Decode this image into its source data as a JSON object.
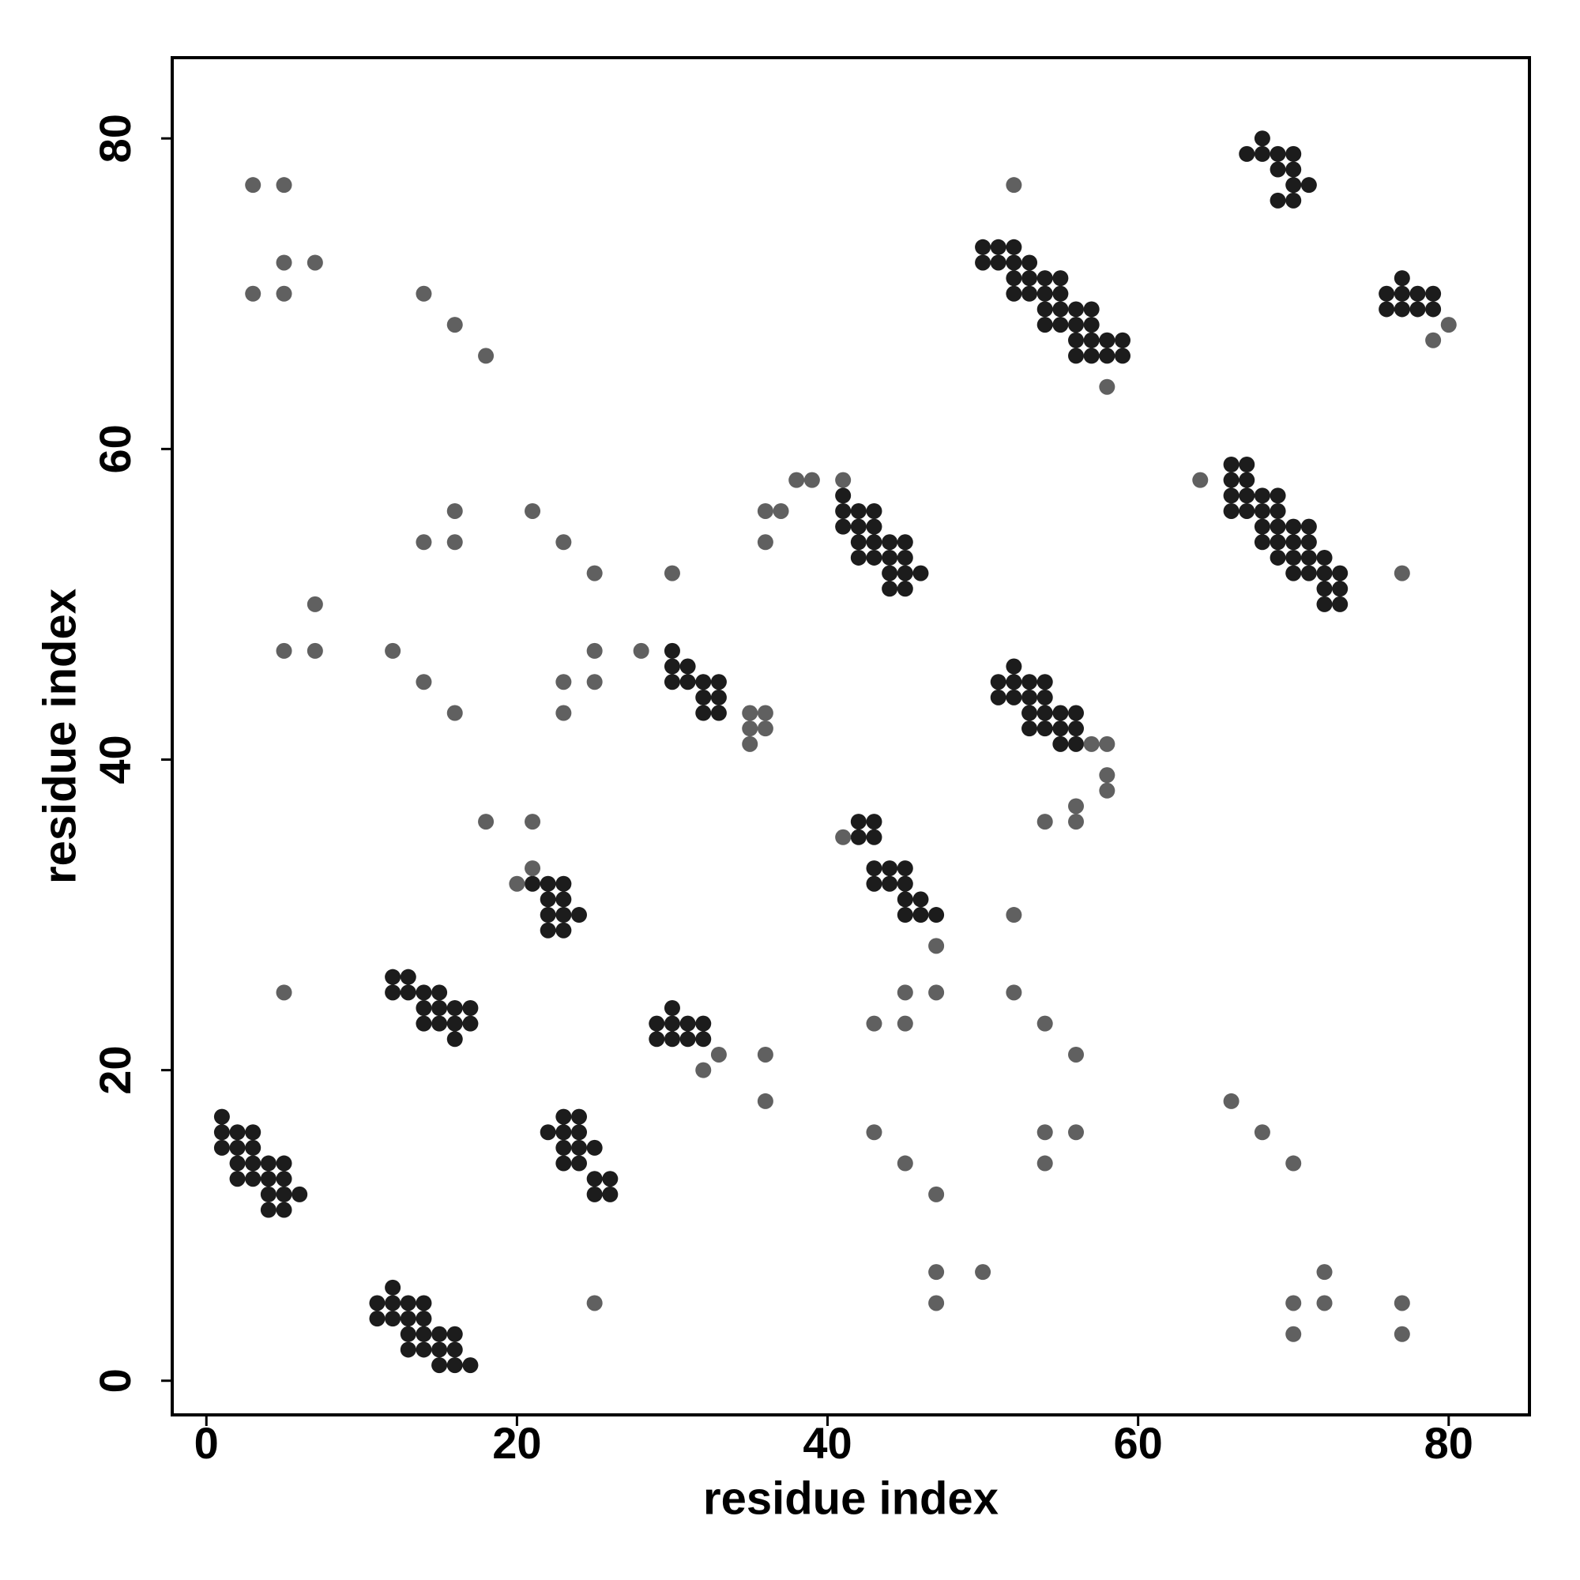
{
  "chart_data": {
    "type": "scatter",
    "xlabel": "residue index",
    "ylabel": "residue index",
    "xlim": [
      -2.2,
      85.2
    ],
    "ylim": [
      -2.2,
      85.2
    ],
    "xticks": [
      0,
      20,
      40,
      60,
      80
    ],
    "yticks": [
      0,
      20,
      40,
      60,
      80
    ],
    "grid": false,
    "series": [
      {
        "color": "#1c1c1c",
        "x": [
          15,
          16,
          17,
          13,
          14,
          15,
          16,
          13,
          14,
          15,
          16,
          11,
          12,
          13,
          14,
          11,
          12,
          13,
          14,
          12,
          4,
          5,
          4,
          5,
          6,
          25,
          26,
          2,
          3,
          4,
          5,
          25,
          26,
          2,
          3,
          4,
          5,
          23,
          24,
          1,
          2,
          3,
          23,
          24,
          25,
          1,
          2,
          3,
          22,
          23,
          24,
          1,
          23,
          24,
          16,
          29,
          30,
          31,
          32,
          14,
          15,
          16,
          17,
          29,
          30,
          31,
          32,
          14,
          15,
          16,
          17,
          30,
          12,
          13,
          14,
          15,
          12,
          13,
          22,
          23,
          22,
          23,
          24,
          45,
          46,
          47,
          22,
          23,
          45,
          46,
          21,
          22,
          23,
          43,
          44,
          45,
          43,
          44,
          45,
          42,
          43,
          42,
          43,
          55,
          56,
          53,
          54,
          55,
          56,
          53,
          54,
          55,
          56,
          32,
          33,
          32,
          33,
          51,
          52,
          53,
          54,
          30,
          31,
          32,
          33,
          51,
          52,
          53,
          54,
          30,
          31,
          52,
          30,
          72,
          73,
          44,
          45,
          72,
          73,
          44,
          45,
          46,
          70,
          71,
          72,
          73,
          42,
          43,
          44,
          45,
          69,
          70,
          71,
          72,
          42,
          43,
          44,
          45,
          68,
          69,
          70,
          71,
          41,
          42,
          43,
          68,
          69,
          70,
          71,
          41,
          42,
          43,
          66,
          67,
          68,
          69,
          41,
          66,
          67,
          68,
          69,
          66,
          67,
          66,
          67,
          56,
          57,
          58,
          59,
          56,
          57,
          58,
          59,
          54,
          55,
          56,
          57,
          54,
          55,
          56,
          57,
          76,
          77,
          78,
          79,
          52,
          53,
          54,
          55,
          76,
          77,
          78,
          79,
          52,
          53,
          54,
          55,
          77,
          50,
          51,
          52,
          53,
          50,
          51,
          52,
          69,
          70,
          70,
          71,
          69,
          70,
          67,
          68,
          69,
          70,
          68
        ],
        "y": [
          1,
          1,
          1,
          2,
          2,
          2,
          2,
          3,
          3,
          3,
          3,
          4,
          4,
          4,
          4,
          5,
          5,
          5,
          5,
          6,
          11,
          11,
          12,
          12,
          12,
          12,
          12,
          13,
          13,
          13,
          13,
          13,
          13,
          14,
          14,
          14,
          14,
          14,
          14,
          15,
          15,
          15,
          15,
          15,
          15,
          16,
          16,
          16,
          16,
          16,
          16,
          17,
          17,
          17,
          22,
          22,
          22,
          22,
          22,
          23,
          23,
          23,
          23,
          23,
          23,
          23,
          23,
          24,
          24,
          24,
          24,
          24,
          25,
          25,
          25,
          25,
          26,
          26,
          29,
          29,
          30,
          30,
          30,
          30,
          30,
          30,
          31,
          31,
          31,
          31,
          32,
          32,
          32,
          32,
          32,
          32,
          33,
          33,
          33,
          35,
          35,
          36,
          36,
          41,
          41,
          42,
          42,
          42,
          42,
          43,
          43,
          43,
          43,
          43,
          43,
          44,
          44,
          44,
          44,
          44,
          44,
          45,
          45,
          45,
          45,
          45,
          45,
          45,
          45,
          46,
          46,
          46,
          47,
          50,
          50,
          51,
          51,
          51,
          51,
          52,
          52,
          52,
          52,
          52,
          52,
          52,
          53,
          53,
          53,
          53,
          53,
          53,
          53,
          53,
          54,
          54,
          54,
          54,
          54,
          54,
          54,
          54,
          55,
          55,
          55,
          55,
          55,
          55,
          55,
          56,
          56,
          56,
          56,
          56,
          56,
          56,
          57,
          57,
          57,
          57,
          57,
          58,
          58,
          59,
          59,
          66,
          66,
          66,
          66,
          67,
          67,
          67,
          67,
          68,
          68,
          68,
          68,
          69,
          69,
          69,
          69,
          69,
          69,
          69,
          69,
          70,
          70,
          70,
          70,
          70,
          70,
          70,
          70,
          71,
          71,
          71,
          71,
          71,
          72,
          72,
          72,
          72,
          73,
          73,
          73,
          76,
          76,
          77,
          77,
          78,
          78,
          79,
          79,
          79,
          79,
          80
        ]
      },
      {
        "color": "#606060",
        "x": [
          70,
          77,
          25,
          47,
          70,
          72,
          77,
          47,
          50,
          72,
          47,
          45,
          54,
          70,
          43,
          54,
          56,
          68,
          36,
          66,
          32,
          33,
          36,
          56,
          43,
          45,
          54,
          5,
          45,
          47,
          52,
          47,
          52,
          20,
          21,
          41,
          18,
          21,
          54,
          56,
          56,
          58,
          58,
          35,
          57,
          58,
          35,
          36,
          16,
          23,
          35,
          36,
          14,
          23,
          25,
          5,
          7,
          12,
          25,
          28,
          7,
          25,
          30,
          77,
          14,
          16,
          23,
          36,
          16,
          21,
          36,
          37,
          38,
          39,
          41,
          64,
          58,
          18,
          79,
          16,
          80,
          3,
          5,
          14,
          5,
          7,
          3,
          5,
          52
        ],
        "y": [
          3,
          3,
          5,
          5,
          5,
          5,
          5,
          7,
          7,
          7,
          12,
          14,
          14,
          14,
          16,
          16,
          16,
          16,
          18,
          18,
          20,
          21,
          21,
          21,
          23,
          23,
          23,
          25,
          25,
          25,
          25,
          28,
          30,
          32,
          33,
          35,
          36,
          36,
          36,
          36,
          37,
          38,
          39,
          41,
          41,
          41,
          42,
          42,
          43,
          43,
          43,
          43,
          45,
          45,
          45,
          47,
          47,
          47,
          47,
          47,
          50,
          52,
          52,
          52,
          54,
          54,
          54,
          54,
          56,
          56,
          56,
          56,
          58,
          58,
          58,
          58,
          64,
          66,
          67,
          68,
          68,
          70,
          70,
          70,
          72,
          72,
          77,
          77,
          77
        ]
      }
    ]
  }
}
